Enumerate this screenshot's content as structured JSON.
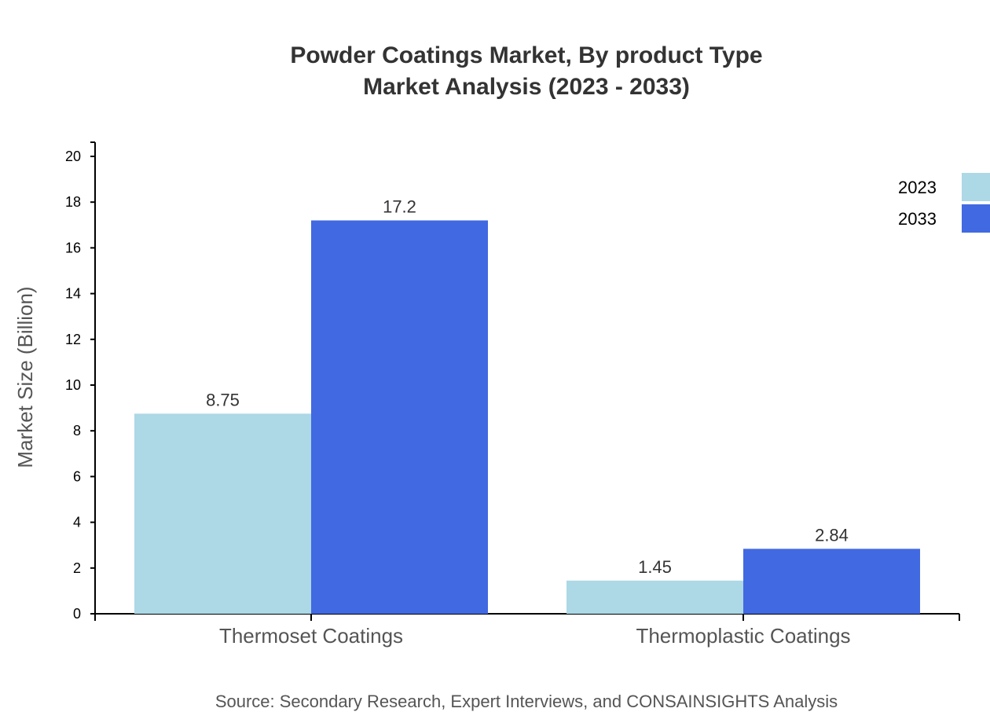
{
  "chart_data": {
    "type": "bar",
    "title": [
      "Powder Coatings Market, By product Type",
      "Market Analysis (2023 - 2033)"
    ],
    "xlabel": "",
    "ylabel": "Market Size (Billion)",
    "categories": [
      "Thermoset Coatings",
      "Thermoplastic Coatings"
    ],
    "series": [
      {
        "name": "2023",
        "values": [
          8.75,
          1.45
        ],
        "color": "#add8e6"
      },
      {
        "name": "2033",
        "values": [
          17.2,
          2.84
        ],
        "color": "#4169e1"
      }
    ],
    "ylim": [
      0,
      20
    ],
    "yticks": [
      0,
      2,
      4,
      6,
      8,
      10,
      12,
      14,
      16,
      18,
      20
    ],
    "grid": false,
    "legend": "top-right",
    "data_labels": true,
    "source": "Source: Secondary Research, Expert Interviews, and CONSAINSIGHTS Analysis"
  }
}
